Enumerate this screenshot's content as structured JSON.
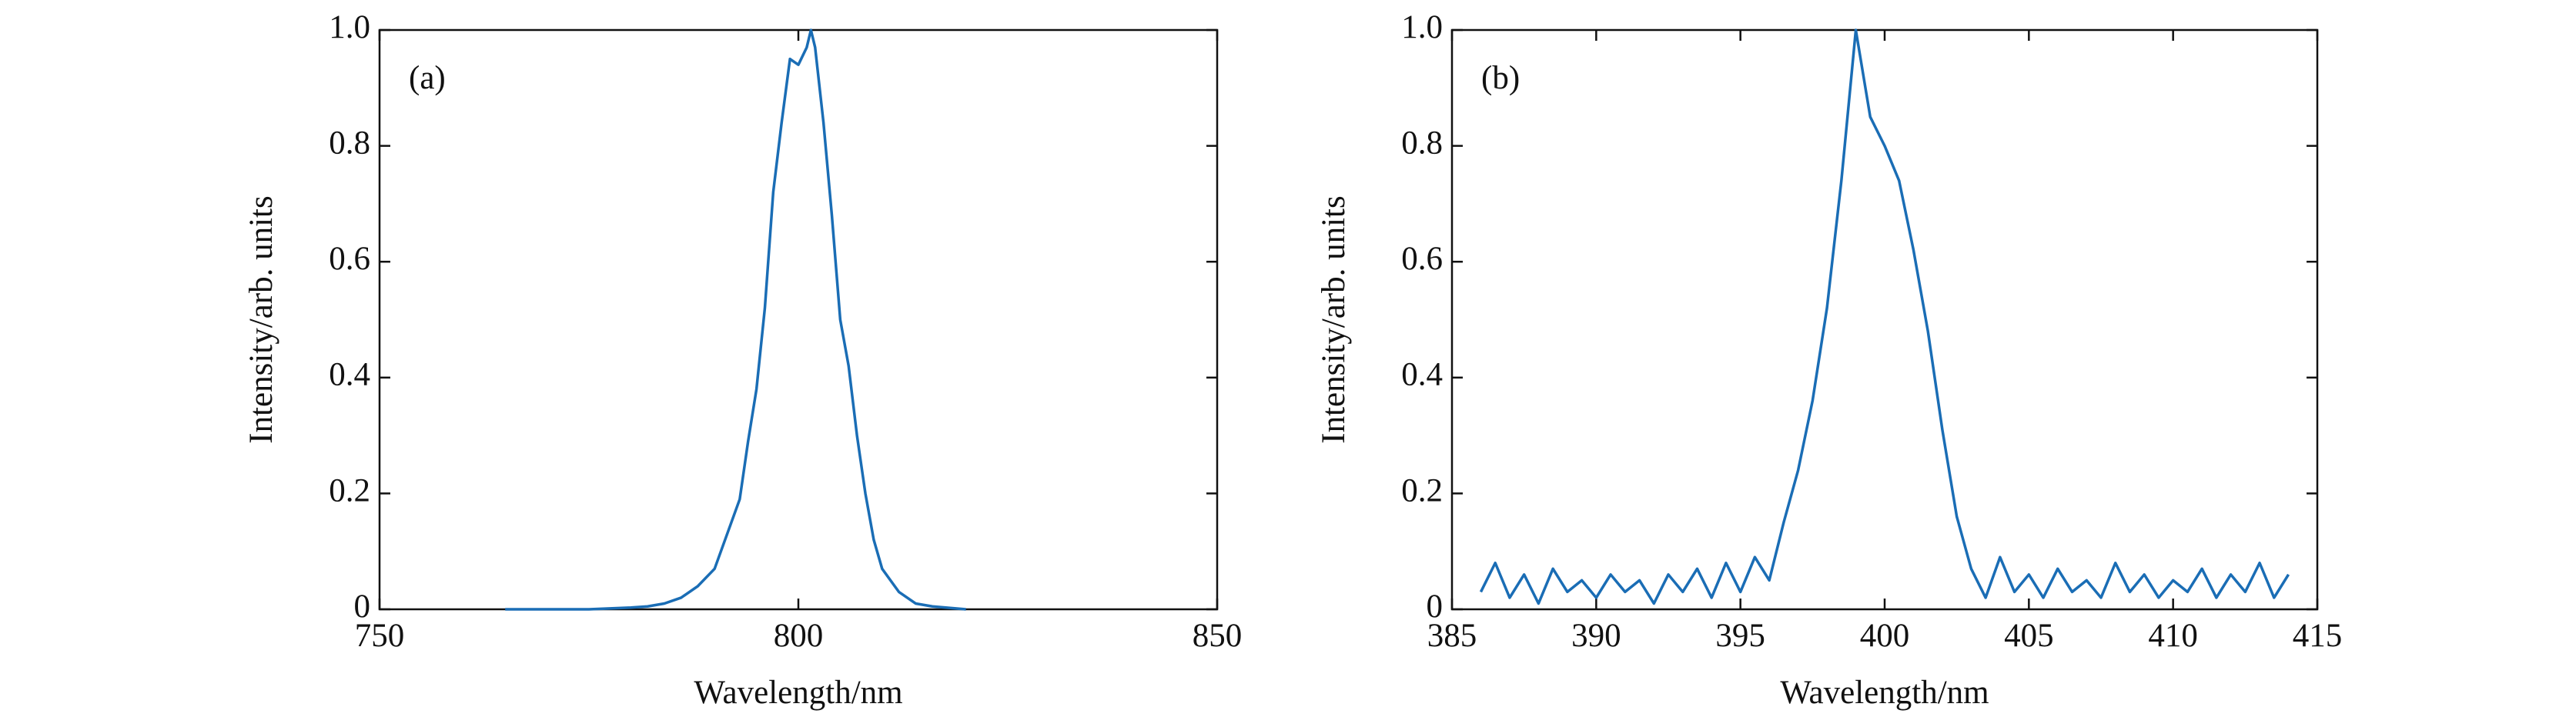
{
  "chart_data": [
    {
      "type": "line",
      "annotation": "(a)",
      "xlabel": "Wavelength/nm",
      "ylabel": "Intensity/arb. units",
      "color": "#1a6db5",
      "x": [
        765,
        775,
        780,
        782,
        784,
        786,
        788,
        790,
        791,
        792,
        793,
        794,
        795,
        796,
        797,
        798,
        799,
        800,
        801,
        801.5,
        802,
        803,
        804,
        805,
        806,
        807,
        808,
        809,
        810,
        811,
        812,
        814,
        816,
        820
      ],
      "values": [
        0,
        0,
        0.003,
        0.005,
        0.01,
        0.02,
        0.04,
        0.07,
        0.11,
        0.15,
        0.19,
        0.29,
        0.38,
        0.52,
        0.72,
        0.84,
        0.95,
        0.94,
        0.97,
        1.0,
        0.97,
        0.84,
        0.68,
        0.5,
        0.42,
        0.3,
        0.2,
        0.12,
        0.07,
        0.05,
        0.03,
        0.01,
        0.005,
        0
      ],
      "xlim": [
        750,
        850
      ],
      "xticks": [
        750,
        800,
        850
      ],
      "ylim": [
        0,
        1
      ],
      "yticks": [
        0,
        0.2,
        0.4,
        0.6,
        0.8,
        {
          "value": 1,
          "label": "1.0"
        }
      ]
    },
    {
      "type": "line",
      "annotation": "(b)",
      "xlabel": "Wavelength/nm",
      "ylabel": "Intensity/arb. units",
      "color": "#1a6db5",
      "x": [
        386,
        386.5,
        387,
        387.5,
        388,
        388.5,
        389,
        389.5,
        390,
        390.5,
        391,
        391.5,
        392,
        392.5,
        393,
        393.5,
        394,
        394.5,
        395,
        395.5,
        396,
        396.5,
        397,
        397.5,
        398,
        398.5,
        399,
        399.5,
        400,
        400.5,
        401,
        401.5,
        402,
        402.5,
        403,
        403.5,
        404,
        404.5,
        405,
        405.5,
        406,
        406.5,
        407,
        407.5,
        408,
        408.5,
        409,
        409.5,
        410,
        410.5,
        411,
        411.5,
        412,
        412.5,
        413,
        413.5,
        414
      ],
      "values": [
        0.03,
        0.08,
        0.02,
        0.06,
        0.01,
        0.07,
        0.03,
        0.05,
        0.02,
        0.06,
        0.03,
        0.05,
        0.01,
        0.06,
        0.03,
        0.07,
        0.02,
        0.08,
        0.03,
        0.09,
        0.05,
        0.15,
        0.24,
        0.36,
        0.52,
        0.74,
        1.0,
        0.85,
        0.8,
        0.74,
        0.62,
        0.48,
        0.31,
        0.16,
        0.07,
        0.02,
        0.09,
        0.03,
        0.06,
        0.02,
        0.07,
        0.03,
        0.05,
        0.02,
        0.08,
        0.03,
        0.06,
        0.02,
        0.05,
        0.03,
        0.07,
        0.02,
        0.06,
        0.03,
        0.08,
        0.02,
        0.06
      ],
      "xlim": [
        385,
        415
      ],
      "xticks": [
        385,
        390,
        395,
        400,
        405,
        410,
        415
      ],
      "ylim": [
        0,
        1
      ],
      "yticks": [
        0,
        0.2,
        0.4,
        0.6,
        0.8,
        {
          "value": 1,
          "label": "1.0"
        }
      ]
    }
  ]
}
